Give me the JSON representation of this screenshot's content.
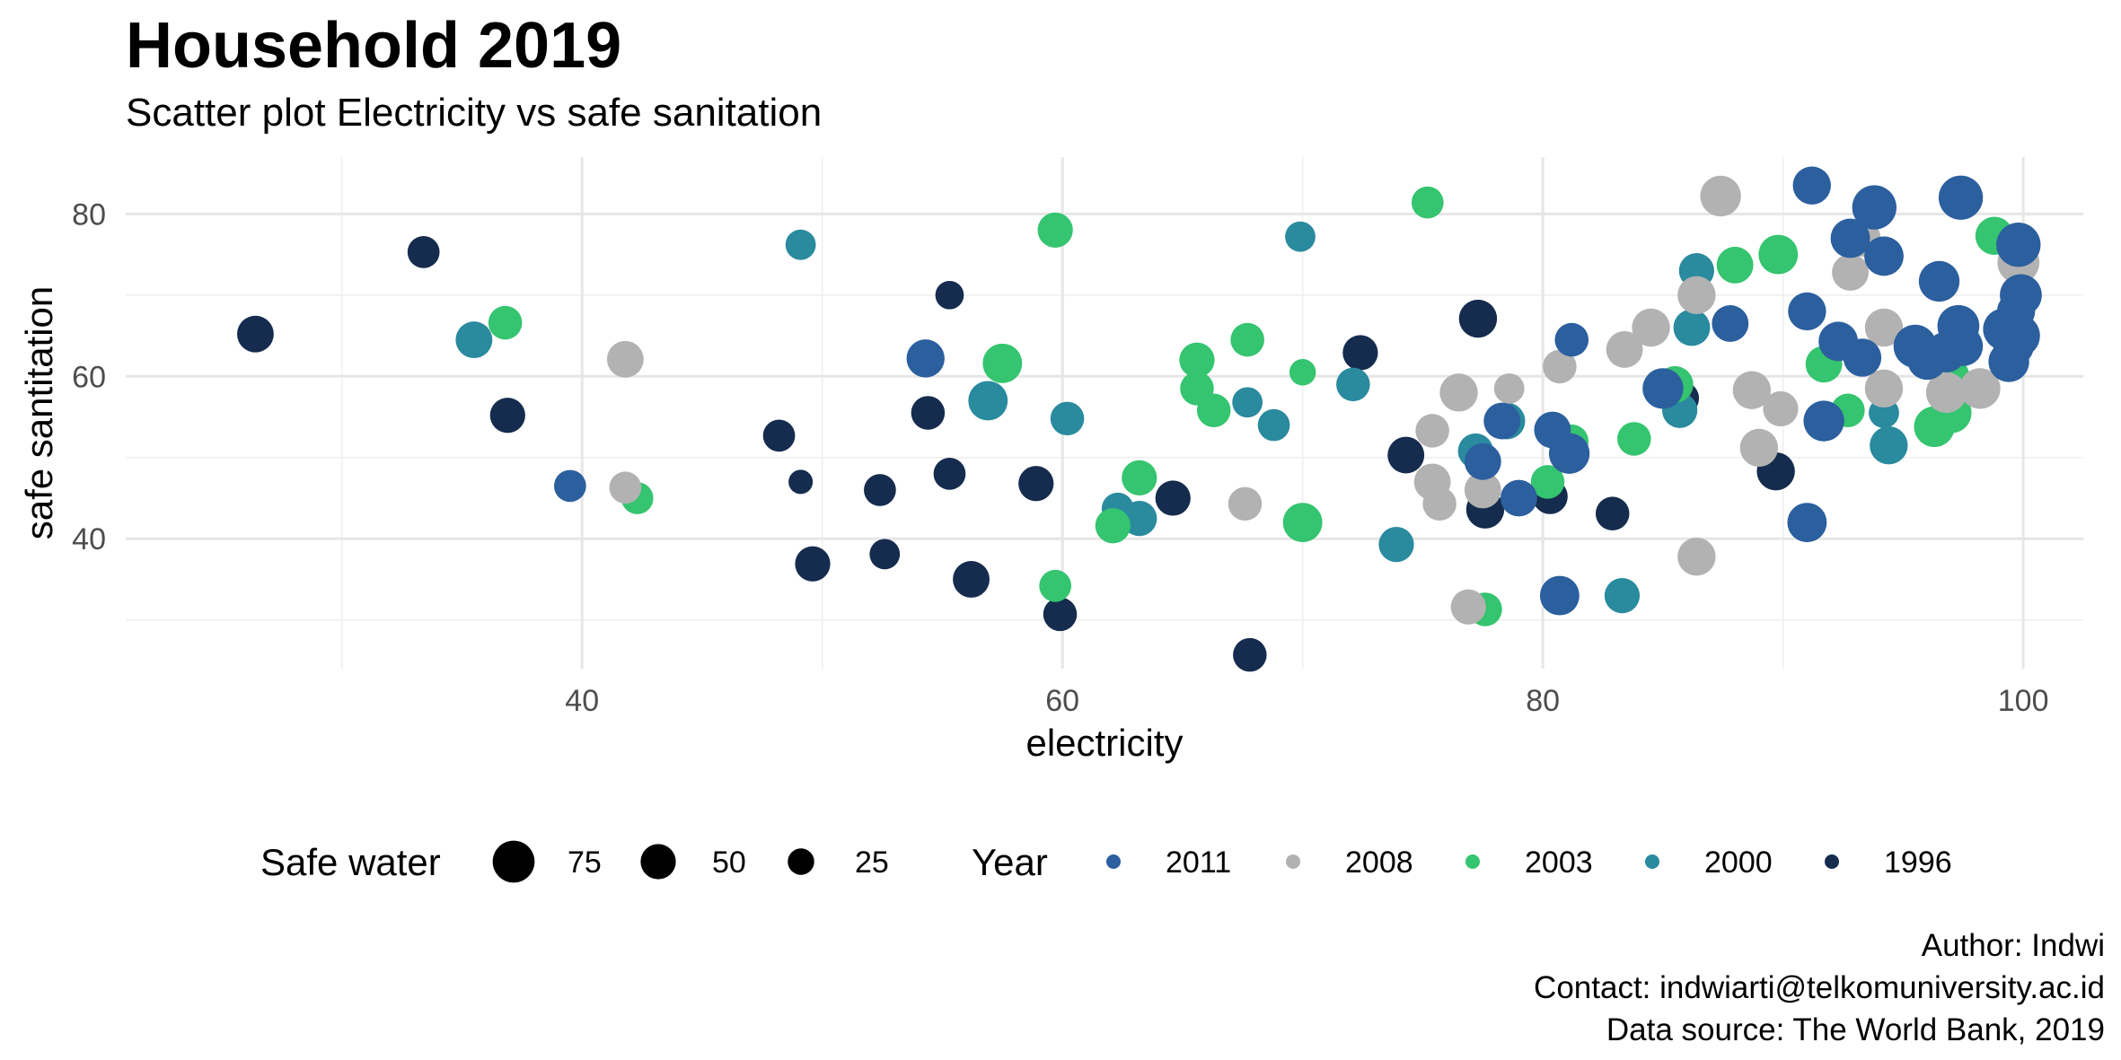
{
  "title": "Household 2019",
  "subtitle": "Scatter plot Electricity vs safe sanitation",
  "caption": {
    "author": "Author: Indwi",
    "contact": "Contact: indwiarti@telkomuniversity.ac.id",
    "source": "Data source: The World Bank, 2019"
  },
  "chart_data": {
    "type": "scatter",
    "xlabel": "electricity",
    "ylabel": "safe santitation",
    "xlim": [
      21,
      102.5
    ],
    "ylim": [
      24,
      87
    ],
    "xticks": [
      40,
      60,
      80,
      100
    ],
    "yticks": [
      40,
      60,
      80
    ],
    "grid": true,
    "legend_position": "bottom",
    "size_legend": {
      "title": "Safe water",
      "values": [
        75,
        50,
        25
      ]
    },
    "color_legend": {
      "title": "Year",
      "entries": [
        {
          "name": "2011",
          "color": "#2c5f9e"
        },
        {
          "name": "2008",
          "color": "#b2b2b2"
        },
        {
          "name": "2003",
          "color": "#35c46f"
        },
        {
          "name": "2000",
          "color": "#2a8a9e"
        },
        {
          "name": "1996",
          "color": "#152c4e"
        }
      ]
    },
    "point_fields": [
      "electricity",
      "safe_sanitation",
      "safe_water"
    ],
    "series": [
      {
        "name": "2011",
        "points": [
          [
            39.5,
            46.5,
            40
          ],
          [
            54.3,
            62.2,
            60
          ],
          [
            80.7,
            33,
            65
          ],
          [
            81.2,
            64.5,
            45
          ],
          [
            80.4,
            53.4,
            55
          ],
          [
            81.1,
            50.5,
            70
          ],
          [
            79,
            45,
            55
          ],
          [
            77.5,
            49.5,
            55
          ],
          [
            78.3,
            54.5,
            55
          ],
          [
            85,
            58.5,
            70
          ],
          [
            87.8,
            66.5,
            55
          ],
          [
            91,
            68,
            60
          ],
          [
            92.3,
            64.3,
            65
          ],
          [
            91.7,
            54.5,
            70
          ],
          [
            91,
            42,
            65
          ],
          [
            91.2,
            83.5,
            60
          ],
          [
            92.8,
            77,
            65
          ],
          [
            93.3,
            62.3,
            60
          ],
          [
            93.8,
            80.8,
            85
          ],
          [
            94.2,
            74.8,
            65
          ],
          [
            95.5,
            63.7,
            80
          ],
          [
            96,
            62,
            65
          ],
          [
            96.5,
            71.7,
            70
          ],
          [
            96.8,
            63,
            70
          ],
          [
            97.3,
            66.2,
            75
          ],
          [
            97.5,
            63.7,
            65
          ],
          [
            97.4,
            82,
            85
          ],
          [
            99.2,
            65.8,
            75
          ],
          [
            99.8,
            76.2,
            85
          ],
          [
            99.9,
            70,
            75
          ],
          [
            99.6,
            63.8,
            70
          ],
          [
            99.4,
            61.8,
            70
          ],
          [
            99.8,
            65,
            80
          ],
          [
            99.7,
            68,
            60
          ]
        ]
      },
      {
        "name": "2008",
        "points": [
          [
            41.8,
            62.1,
            55
          ],
          [
            41.8,
            46.3,
            40
          ],
          [
            67.6,
            44.3,
            45
          ],
          [
            75.4,
            53.3,
            45
          ],
          [
            75.4,
            47,
            55
          ],
          [
            75.7,
            44.3,
            45
          ],
          [
            76.5,
            58,
            60
          ],
          [
            76.9,
            31.6,
            50
          ],
          [
            77.5,
            46,
            55
          ],
          [
            78.6,
            58.5,
            35
          ],
          [
            80.7,
            61.2,
            45
          ],
          [
            83.4,
            63.3,
            55
          ],
          [
            84.5,
            66,
            60
          ],
          [
            86.4,
            70,
            60
          ],
          [
            86.4,
            37.8,
            60
          ],
          [
            87.4,
            82.2,
            70
          ],
          [
            88.7,
            58.3,
            60
          ],
          [
            89,
            51.2,
            60
          ],
          [
            89.9,
            56,
            50
          ],
          [
            92.8,
            72.8,
            55
          ],
          [
            93.3,
            77,
            55
          ],
          [
            94.2,
            66,
            60
          ],
          [
            94.2,
            58.5,
            60
          ],
          [
            96.8,
            58,
            70
          ],
          [
            98.2,
            58.5,
            70
          ],
          [
            99.8,
            74,
            75
          ]
        ]
      },
      {
        "name": "2003",
        "points": [
          [
            36.8,
            66.6,
            45
          ],
          [
            42.3,
            45,
            40
          ],
          [
            57.5,
            61.6,
            65
          ],
          [
            59.7,
            78,
            50
          ],
          [
            59.7,
            34.2,
            40
          ],
          [
            62.1,
            41.6,
            50
          ],
          [
            63.2,
            47.5,
            50
          ],
          [
            65.6,
            62,
            50
          ],
          [
            65.6,
            58.5,
            45
          ],
          [
            66.3,
            55.8,
            45
          ],
          [
            67.7,
            64.5,
            45
          ],
          [
            70,
            60.5,
            25
          ],
          [
            70,
            42,
            65
          ],
          [
            75.2,
            81.4,
            40
          ],
          [
            77.6,
            31.3,
            45
          ],
          [
            80.2,
            47,
            45
          ],
          [
            81.2,
            52,
            45
          ],
          [
            83.8,
            52.3,
            45
          ],
          [
            85.5,
            59,
            55
          ],
          [
            88,
            73.7,
            55
          ],
          [
            89.8,
            75,
            65
          ],
          [
            91.7,
            61.5,
            55
          ],
          [
            92.7,
            55.8,
            45
          ],
          [
            96.3,
            53.8,
            70
          ],
          [
            97,
            55.5,
            70
          ],
          [
            97,
            60,
            55
          ],
          [
            97.5,
            64.5,
            45
          ],
          [
            98.8,
            77.3,
            60
          ]
        ]
      },
      {
        "name": "2000",
        "points": [
          [
            35.5,
            64.5,
            55
          ],
          [
            49.1,
            76.2,
            35
          ],
          [
            56.9,
            57,
            65
          ],
          [
            60.2,
            54.8,
            45
          ],
          [
            62.3,
            43.7,
            40
          ],
          [
            63.2,
            42.5,
            50
          ],
          [
            67.7,
            56.8,
            35
          ],
          [
            68.8,
            54,
            40
          ],
          [
            69.9,
            77.2,
            35
          ],
          [
            72.1,
            59,
            45
          ],
          [
            73.9,
            39.3,
            50
          ],
          [
            77.2,
            50.8,
            50
          ],
          [
            78.5,
            54.5,
            55
          ],
          [
            83.3,
            33,
            50
          ],
          [
            85.7,
            55.8,
            50
          ],
          [
            86.2,
            66,
            55
          ],
          [
            86.4,
            73,
            50
          ],
          [
            94.2,
            55.5,
            35
          ],
          [
            94.4,
            51.5,
            60
          ]
        ]
      },
      {
        "name": "1996",
        "points": [
          [
            26.4,
            65.2,
            55
          ],
          [
            33.4,
            75.3,
            40
          ],
          [
            36.9,
            55.2,
            50
          ],
          [
            48.2,
            52.7,
            40
          ],
          [
            49.1,
            47,
            20
          ],
          [
            49.6,
            36.9,
            50
          ],
          [
            52.4,
            46,
            40
          ],
          [
            52.6,
            38.1,
            35
          ],
          [
            54.4,
            55.5,
            45
          ],
          [
            55.3,
            48,
            40
          ],
          [
            55.3,
            70,
            30
          ],
          [
            56.2,
            35,
            55
          ],
          [
            58.9,
            46.8,
            50
          ],
          [
            59.9,
            30.7,
            45
          ],
          [
            64.6,
            45,
            50
          ],
          [
            67.8,
            25.7,
            45
          ],
          [
            72.4,
            62.9,
            50
          ],
          [
            74.3,
            50.3,
            55
          ],
          [
            77.3,
            67.1,
            60
          ],
          [
            77.6,
            43.6,
            60
          ],
          [
            80.3,
            45.2,
            50
          ],
          [
            82.9,
            43.1,
            45
          ],
          [
            85.8,
            57.3,
            45
          ],
          [
            89.7,
            48.3,
            60
          ]
        ]
      }
    ]
  }
}
